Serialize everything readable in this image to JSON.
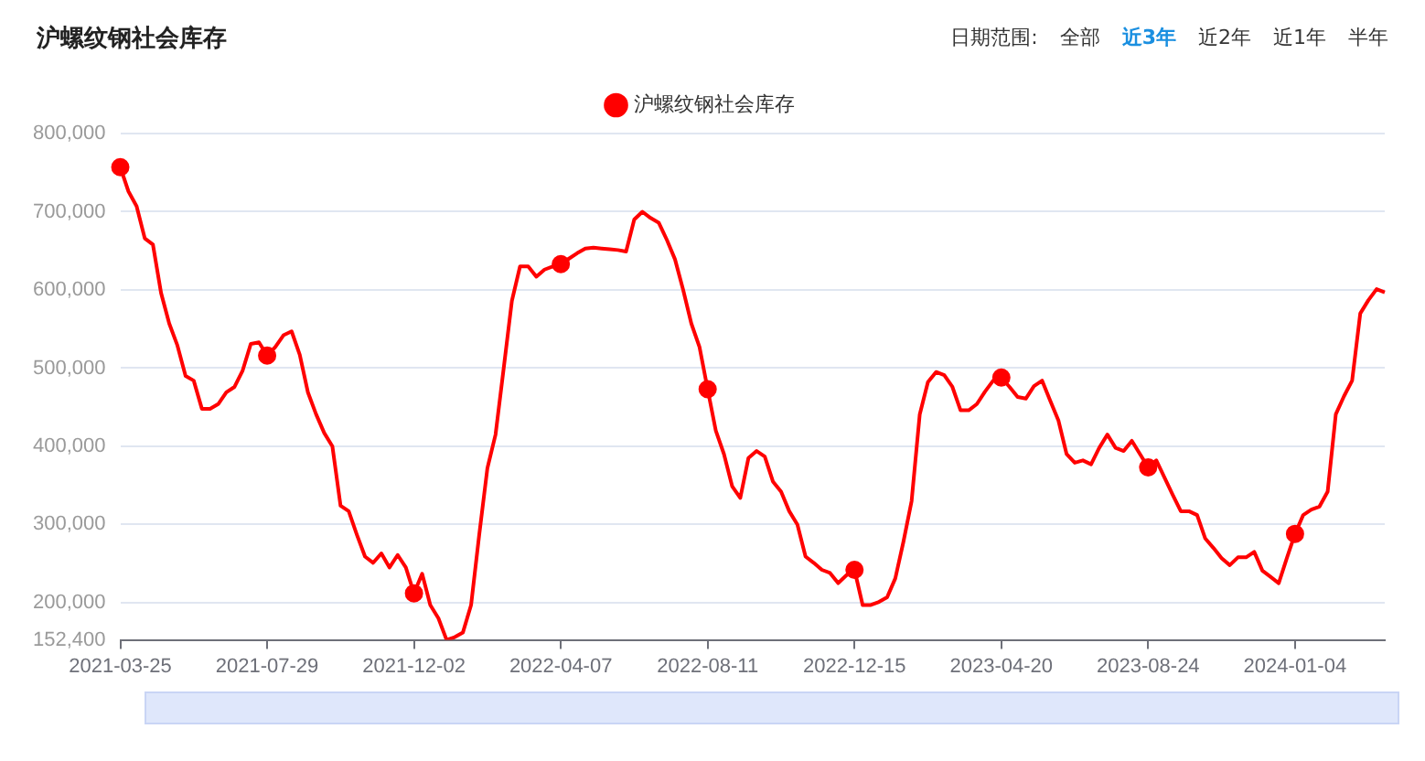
{
  "chart_data": {
    "type": "line",
    "title": "沪螺纹钢社会库存",
    "annotations": [
      "日期范围:",
      "全部",
      "近3年",
      "近2年",
      "近1年",
      "半年"
    ],
    "categories": [
      "2021-03-25",
      null,
      null,
      null,
      null,
      null,
      null,
      null,
      null,
      null,
      null,
      null,
      null,
      null,
      null,
      null,
      null,
      null,
      "2021-07-29",
      null,
      null,
      null,
      null,
      null,
      null,
      null,
      null,
      null,
      null,
      null,
      null,
      null,
      null,
      null,
      null,
      null,
      "2021-12-02",
      null,
      null,
      null,
      null,
      null,
      null,
      null,
      null,
      null,
      null,
      null,
      null,
      null,
      null,
      null,
      null,
      null,
      "2022-04-07",
      null,
      null,
      null,
      null,
      null,
      null,
      null,
      null,
      null,
      null,
      null,
      null,
      null,
      null,
      null,
      null,
      null,
      "2022-08-11",
      null,
      null,
      null,
      null,
      null,
      null,
      null,
      null,
      null,
      null,
      null,
      null,
      null,
      null,
      null,
      null,
      null,
      "2022-12-15",
      null,
      null,
      null,
      null,
      null,
      null,
      null,
      null,
      null,
      null,
      null,
      null,
      null,
      null,
      null,
      null,
      null,
      "2023-04-20",
      null,
      null,
      null,
      null,
      null,
      null,
      null,
      null,
      null,
      null,
      null,
      null,
      null,
      null,
      null,
      null,
      null,
      "2023-08-24",
      null,
      null,
      null,
      null,
      null,
      null,
      null,
      null,
      null,
      null,
      null,
      null,
      null,
      null,
      null,
      null,
      null,
      "2024-01-04",
      null,
      null,
      null,
      null,
      null,
      null,
      null,
      null,
      null,
      null,
      null
    ],
    "series": [
      {
        "name": "沪螺纹钢社会库存",
        "color": "#ff0000",
        "values": [
          757000,
          726000,
          707000,
          666000,
          658000,
          596000,
          557000,
          529000,
          490000,
          484000,
          448000,
          448000,
          454000,
          469000,
          476000,
          497000,
          531000,
          533000,
          516000,
          527000,
          542000,
          547000,
          517000,
          469000,
          441000,
          417000,
          400000,
          324000,
          317000,
          287000,
          259000,
          251000,
          263000,
          245000,
          261000,
          245000,
          212000,
          237000,
          197000,
          180000,
          152400,
          156000,
          162000,
          197000,
          287000,
          372000,
          415000,
          500000,
          586000,
          630000,
          630000,
          617000,
          626000,
          630000,
          633000,
          640000,
          647000,
          653000,
          654000,
          653000,
          652000,
          651000,
          649000,
          690000,
          700000,
          692000,
          686000,
          664000,
          639000,
          600000,
          557000,
          527000,
          473000,
          420000,
          390000,
          349000,
          334000,
          385000,
          394000,
          387000,
          355000,
          342000,
          317000,
          300000,
          259000,
          251000,
          242000,
          238000,
          225000,
          235000,
          242000,
          197000,
          197000,
          201000,
          207000,
          231000,
          278000,
          330000,
          441000,
          482000,
          495000,
          491000,
          476000,
          446000,
          446000,
          454000,
          470000,
          484000,
          488000,
          476000,
          463000,
          461000,
          477000,
          484000,
          458000,
          433000,
          390000,
          379000,
          382000,
          377000,
          398000,
          415000,
          398000,
          394000,
          407000,
          390000,
          373000,
          382000,
          360000,
          338000,
          317000,
          317000,
          312000,
          282000,
          270000,
          257000,
          248000,
          258000,
          258000,
          265000,
          241000,
          233000,
          225000,
          257000,
          288000,
          312000,
          319000,
          323000,
          342000,
          441000,
          464000,
          484000,
          570000,
          587000,
          601000,
          597000
        ]
      }
    ],
    "ylim": [
      152400,
      800000
    ],
    "yticks": [
      {
        "value": 152400,
        "label": "152,400"
      },
      {
        "value": 200000,
        "label": "200,000"
      },
      {
        "value": 300000,
        "label": "300,000"
      },
      {
        "value": 400000,
        "label": "400,000"
      },
      {
        "value": 500000,
        "label": "500,000"
      },
      {
        "value": 600000,
        "label": "600,000"
      },
      {
        "value": 700000,
        "label": "700,000"
      },
      {
        "value": 800000,
        "label": "800,000"
      }
    ],
    "grid": "y",
    "legend": "top",
    "line_style": "solid"
  }
}
